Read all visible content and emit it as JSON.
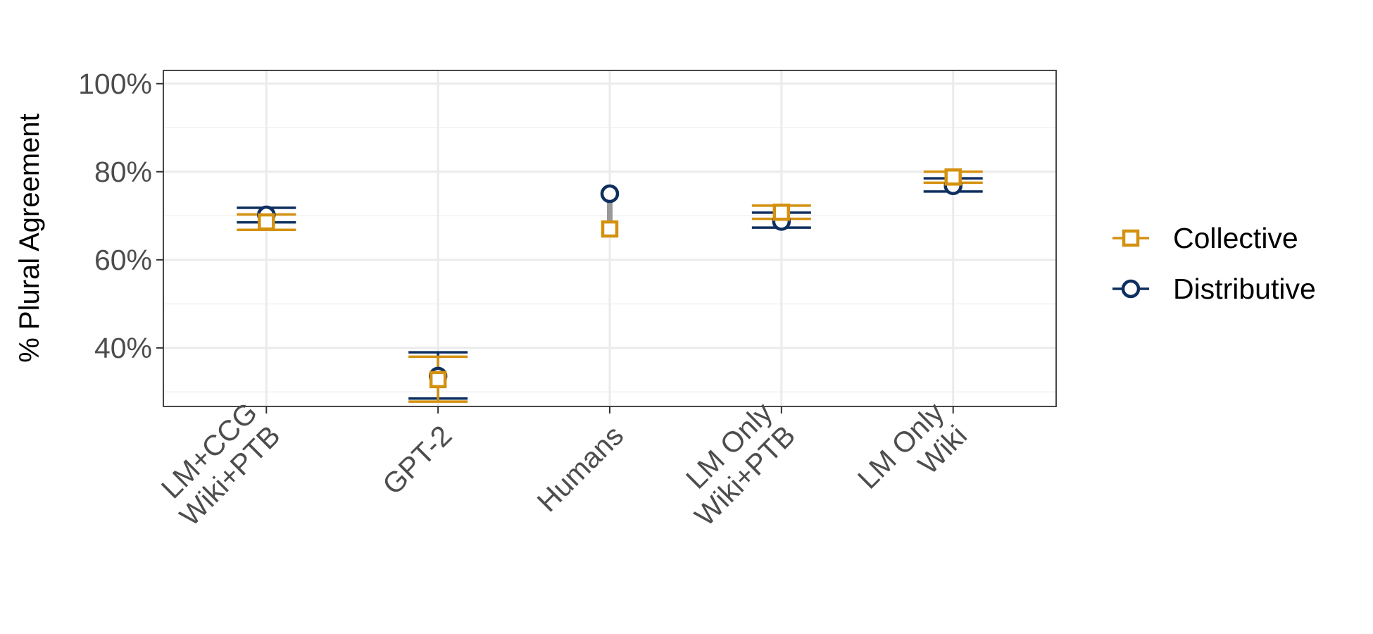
{
  "chart_data": {
    "type": "scatter",
    "ylabel": "% Plural Agreement",
    "xlabel": "",
    "ylim": [
      26.7,
      103
    ],
    "yticks": [
      40,
      60,
      80,
      100
    ],
    "ytick_labels": [
      "40%",
      "60%",
      "80%",
      "100%"
    ],
    "y_minor_ticks": [
      30,
      50,
      70,
      90
    ],
    "grid": true,
    "legend_position": "right",
    "categories": [
      {
        "id": "lmccg",
        "lines": [
          "LM+CCG",
          "Wiki+PTB"
        ]
      },
      {
        "id": "gpt2",
        "lines": [
          "GPT-2"
        ]
      },
      {
        "id": "humans",
        "lines": [
          "Humans"
        ]
      },
      {
        "id": "lmwp",
        "lines": [
          "LM Only",
          "Wiki+PTB"
        ]
      },
      {
        "id": "lmwiki",
        "lines": [
          "LM Only",
          "Wiki"
        ]
      }
    ],
    "connector_color": "#999999",
    "series": [
      {
        "name": "Collective",
        "marker": "square",
        "color": "#D4910F",
        "values": [
          68.6,
          32.8,
          67.0,
          70.8,
          78.8
        ],
        "err_low": [
          66.8,
          27.8,
          null,
          69.3,
          77.5
        ],
        "err_high": [
          70.3,
          38.0,
          null,
          72.3,
          80.0
        ]
      },
      {
        "name": "Distributive",
        "marker": "circle",
        "color": "#0E2F5F",
        "values": [
          70.2,
          33.6,
          75.0,
          68.7,
          76.8
        ],
        "err_low": [
          68.5,
          28.5,
          null,
          67.3,
          75.5
        ],
        "err_high": [
          71.8,
          39.0,
          null,
          70.7,
          78.5
        ]
      }
    ]
  }
}
